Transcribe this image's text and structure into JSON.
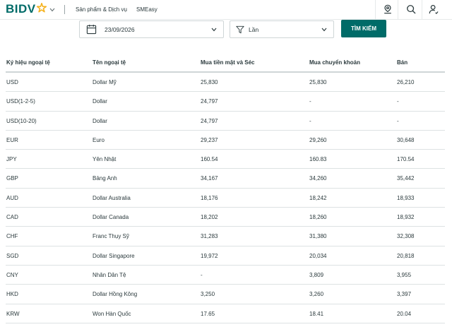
{
  "header": {
    "logo_text": "BIDV",
    "nav": [
      "Sản phẩm & Dịch vụ",
      "SMEasy"
    ],
    "icons": [
      "user-location-icon",
      "search-icon",
      "user-icon"
    ]
  },
  "filters": {
    "date_value": "23/09/2026",
    "type_value": "Lần",
    "search_label": "TÌM KIẾM"
  },
  "colors": {
    "brand": "#006b68",
    "accent": "#f5b21e"
  },
  "table": {
    "headers": [
      "Ký hiệu ngoại tệ",
      "Tên ngoại tệ",
      "Mua tiền mặt và Séc",
      "Mua chuyển khoản",
      "Bán"
    ],
    "rows": [
      [
        "USD",
        "Dollar Mỹ",
        "25,830",
        "25,830",
        "26,210"
      ],
      [
        "USD(1-2-5)",
        "Dollar",
        "24,797",
        "-",
        "-"
      ],
      [
        "USD(10-20)",
        "Dollar",
        "24,797",
        "-",
        "-"
      ],
      [
        "EUR",
        "Euro",
        "29,237",
        "29,260",
        "30,648"
      ],
      [
        "JPY",
        "Yên Nhật",
        "160.54",
        "160.83",
        "170.54"
      ],
      [
        "GBP",
        "Bảng Anh",
        "34,167",
        "34,260",
        "35,442"
      ],
      [
        "AUD",
        "Dollar Australia",
        "18,176",
        "18,242",
        "18,933"
      ],
      [
        "CAD",
        "Dollar Canada",
        "18,202",
        "18,260",
        "18,932"
      ],
      [
        "CHF",
        "Franc Thụy Sỹ",
        "31,283",
        "31,380",
        "32,308"
      ],
      [
        "SGD",
        "Dollar Singapore",
        "19,972",
        "20,034",
        "20,818"
      ],
      [
        "CNY",
        "Nhân Dân Tệ",
        "-",
        "3,809",
        "3,955"
      ],
      [
        "HKD",
        "Dollar Hồng Kông",
        "3,250",
        "3,260",
        "3,397"
      ],
      [
        "KRW",
        "Won Hàn Quốc",
        "17.65",
        "18.41",
        "20.04"
      ]
    ]
  }
}
